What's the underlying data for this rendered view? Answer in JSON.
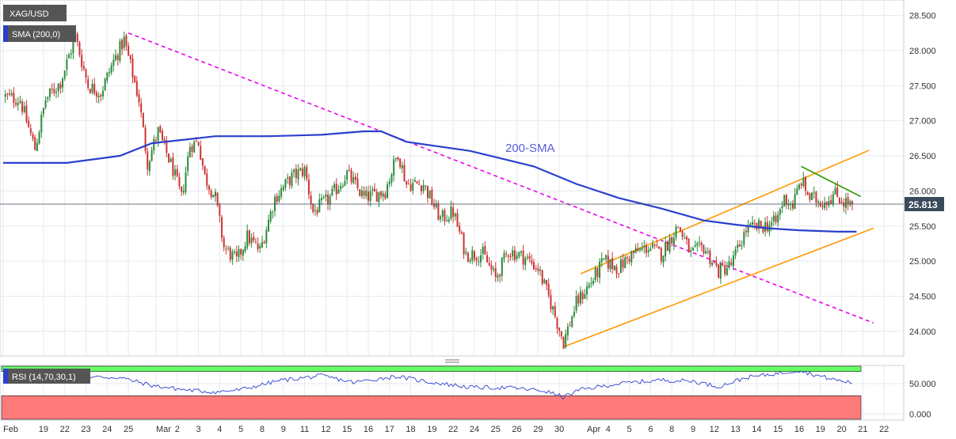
{
  "chart_data": [
    {
      "type": "candlestick",
      "symbol": "XAG/USD",
      "indicator_label": "SMA (200,0)",
      "annotation": "200-SMA",
      "last_price": "25.813",
      "last_price_value": 25.813,
      "ylim": [
        23.65,
        28.72
      ],
      "y_ticks": [
        "24.000",
        "24.500",
        "25.000",
        "25.500",
        "26.000",
        "26.500",
        "27.000",
        "27.500",
        "28.000",
        "28.500"
      ],
      "y_tick_values": [
        24.0,
        24.5,
        25.0,
        25.5,
        26.0,
        26.5,
        27.0,
        27.5,
        28.0,
        28.5
      ],
      "x_ticks": [
        {
          "i": 0,
          "label": "Feb"
        },
        {
          "i": 19,
          "label": "19"
        },
        {
          "i": 29,
          "label": "22"
        },
        {
          "i": 39,
          "label": "23"
        },
        {
          "i": 49,
          "label": "24"
        },
        {
          "i": 59,
          "label": "25"
        },
        {
          "i": 72,
          "label": "Mar"
        },
        {
          "i": 82,
          "label": "2"
        },
        {
          "i": 92,
          "label": "3"
        },
        {
          "i": 102,
          "label": "4"
        },
        {
          "i": 112,
          "label": "5"
        },
        {
          "i": 122,
          "label": "8"
        },
        {
          "i": 132,
          "label": "9"
        },
        {
          "i": 142,
          "label": "11"
        },
        {
          "i": 152,
          "label": "12"
        },
        {
          "i": 162,
          "label": "15"
        },
        {
          "i": 172,
          "label": "16"
        },
        {
          "i": 182,
          "label": "17"
        },
        {
          "i": 192,
          "label": "18"
        },
        {
          "i": 202,
          "label": "19"
        },
        {
          "i": 212,
          "label": "22"
        },
        {
          "i": 222,
          "label": "24"
        },
        {
          "i": 232,
          "label": "25"
        },
        {
          "i": 242,
          "label": "26"
        },
        {
          "i": 252,
          "label": "29"
        },
        {
          "i": 262,
          "label": "30"
        },
        {
          "i": 275,
          "label": "Apr"
        },
        {
          "i": 285,
          "label": "4"
        },
        {
          "i": 295,
          "label": "5"
        },
        {
          "i": 305,
          "label": "6"
        },
        {
          "i": 315,
          "label": "8"
        },
        {
          "i": 325,
          "label": "9"
        },
        {
          "i": 335,
          "label": "12"
        },
        {
          "i": 345,
          "label": "13"
        },
        {
          "i": 355,
          "label": "14"
        },
        {
          "i": 365,
          "label": "15"
        },
        {
          "i": 375,
          "label": "16"
        },
        {
          "i": 385,
          "label": "19"
        },
        {
          "i": 395,
          "label": "20"
        },
        {
          "i": 405,
          "label": "21"
        },
        {
          "i": 415,
          "label": "22"
        }
      ],
      "price_anchors": [
        [
          0,
          27.35
        ],
        [
          8,
          27.3
        ],
        [
          15,
          26.6
        ],
        [
          20,
          27.3
        ],
        [
          27,
          27.55
        ],
        [
          34,
          28.2
        ],
        [
          40,
          27.5
        ],
        [
          46,
          27.4
        ],
        [
          52,
          27.85
        ],
        [
          57,
          28.15
        ],
        [
          64,
          27.3
        ],
        [
          68,
          26.4
        ],
        [
          73,
          26.85
        ],
        [
          80,
          26.3
        ],
        [
          84,
          25.9
        ],
        [
          88,
          26.65
        ],
        [
          92,
          26.7
        ],
        [
          95,
          26.2
        ],
        [
          100,
          25.9
        ],
        [
          104,
          25.2
        ],
        [
          110,
          25.0
        ],
        [
          115,
          25.35
        ],
        [
          121,
          25.15
        ],
        [
          128,
          25.9
        ],
        [
          136,
          26.2
        ],
        [
          142,
          26.3
        ],
        [
          146,
          25.7
        ],
        [
          154,
          25.9
        ],
        [
          162,
          26.25
        ],
        [
          170,
          25.9
        ],
        [
          180,
          26.0
        ],
        [
          186,
          26.55
        ],
        [
          190,
          26.1
        ],
        [
          198,
          26.1
        ],
        [
          206,
          25.6
        ],
        [
          212,
          25.7
        ],
        [
          218,
          25.1
        ],
        [
          226,
          25.1
        ],
        [
          232,
          24.75
        ],
        [
          238,
          25.15
        ],
        [
          246,
          25.05
        ],
        [
          252,
          24.9
        ],
        [
          258,
          24.4
        ],
        [
          264,
          23.85
        ],
        [
          270,
          24.4
        ],
        [
          277,
          24.7
        ],
        [
          283,
          25.0
        ],
        [
          290,
          24.9
        ],
        [
          296,
          25.1
        ],
        [
          304,
          25.2
        ],
        [
          310,
          25.1
        ],
        [
          318,
          25.5
        ],
        [
          324,
          25.1
        ],
        [
          330,
          25.2
        ],
        [
          337,
          24.85
        ],
        [
          343,
          24.95
        ],
        [
          350,
          25.45
        ],
        [
          358,
          25.5
        ],
        [
          364,
          25.55
        ],
        [
          368,
          25.9
        ],
        [
          372,
          25.8
        ],
        [
          376,
          26.15
        ],
        [
          380,
          25.9
        ],
        [
          386,
          25.85
        ],
        [
          392,
          25.95
        ],
        [
          396,
          25.85
        ],
        [
          400,
          25.81
        ]
      ],
      "sma_200": [
        [
          0,
          26.4
        ],
        [
          30,
          26.4
        ],
        [
          55,
          26.5
        ],
        [
          70,
          26.68
        ],
        [
          100,
          26.78
        ],
        [
          125,
          26.78
        ],
        [
          150,
          26.8
        ],
        [
          170,
          26.85
        ],
        [
          178,
          26.85
        ],
        [
          190,
          26.7
        ],
        [
          220,
          26.57
        ],
        [
          250,
          26.35
        ],
        [
          270,
          26.1
        ],
        [
          290,
          25.9
        ],
        [
          310,
          25.75
        ],
        [
          330,
          25.58
        ],
        [
          345,
          25.52
        ],
        [
          360,
          25.47
        ],
        [
          375,
          25.44
        ],
        [
          393,
          25.42
        ],
        [
          402,
          25.42
        ]
      ],
      "trendlines": [
        {
          "name": "descending-resistance",
          "color": "#ee00ee",
          "dashed": true,
          "points": [
            [
              59,
              28.25
            ],
            [
              410,
              24.12
            ]
          ]
        },
        {
          "name": "channel-upper",
          "color": "#ff9900",
          "dashed": false,
          "points": [
            [
              272,
              24.82
            ],
            [
              408,
              26.58
            ]
          ]
        },
        {
          "name": "channel-lower",
          "color": "#ff9900",
          "dashed": false,
          "points": [
            [
              264,
              23.78
            ],
            [
              410,
              25.47
            ]
          ]
        },
        {
          "name": "short-term-resistance",
          "color": "#339900",
          "dashed": false,
          "points": [
            [
              376,
              26.35
            ],
            [
              404,
              25.92
            ]
          ]
        }
      ]
    },
    {
      "type": "line",
      "indicator_label": "RSI (14,70,30,1)",
      "ylim": [
        -10,
        80
      ],
      "y_ticks": [
        "0.000",
        "50.000"
      ],
      "y_tick_values": [
        0,
        50
      ],
      "overbought": 70,
      "oversold": 30,
      "rsi_anchors": [
        [
          0,
          58
        ],
        [
          15,
          52
        ],
        [
          28,
          57
        ],
        [
          40,
          61
        ],
        [
          55,
          60
        ],
        [
          70,
          47
        ],
        [
          85,
          40
        ],
        [
          100,
          36
        ],
        [
          112,
          40
        ],
        [
          130,
          55
        ],
        [
          150,
          63
        ],
        [
          165,
          52
        ],
        [
          185,
          62
        ],
        [
          200,
          53
        ],
        [
          220,
          44
        ],
        [
          240,
          43
        ],
        [
          255,
          38
        ],
        [
          264,
          28
        ],
        [
          272,
          40
        ],
        [
          290,
          50
        ],
        [
          310,
          56
        ],
        [
          325,
          54
        ],
        [
          337,
          45
        ],
        [
          350,
          60
        ],
        [
          365,
          67
        ],
        [
          375,
          72
        ],
        [
          385,
          62
        ],
        [
          395,
          54
        ],
        [
          400,
          52
        ]
      ]
    }
  ],
  "colors": {
    "bull": "#2a8a3a",
    "bear": "#cc3333",
    "sma": "#2a40cc",
    "rsi": "#2a40cc",
    "overbought_zone": "#66ff66",
    "oversold_zone": "#ff7a7a",
    "label_box": "#555555",
    "price_tag": "#3a4a5a",
    "grid": "#e6e9ee"
  }
}
